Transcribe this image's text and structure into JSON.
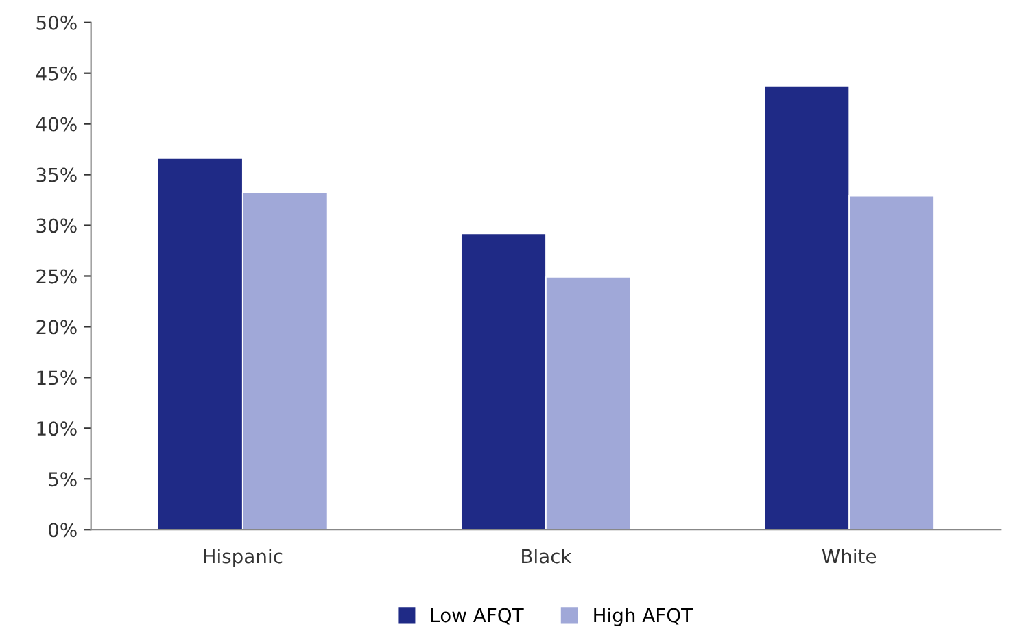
{
  "chart_data": {
    "type": "bar",
    "categories": [
      "Hispanic",
      "Black",
      "White"
    ],
    "series": [
      {
        "name": "Low AFQT",
        "color": "#1f2a86",
        "values": [
          36.6,
          29.2,
          43.7
        ]
      },
      {
        "name": "High AFQT",
        "color": "#a0a8d8",
        "values": [
          33.2,
          24.9,
          32.9
        ]
      }
    ],
    "ylim": [
      0,
      50
    ],
    "yticks": [
      {
        "value": 0,
        "label": "0%"
      },
      {
        "value": 5,
        "label": "5%"
      },
      {
        "value": 10,
        "label": "10%"
      },
      {
        "value": 15,
        "label": "15%"
      },
      {
        "value": 20,
        "label": "20%"
      },
      {
        "value": 25,
        "label": "25%"
      },
      {
        "value": 30,
        "label": "30%"
      },
      {
        "value": 35,
        "label": "35%"
      },
      {
        "value": 40,
        "label": "40%"
      },
      {
        "value": 45,
        "label": "45%"
      },
      {
        "value": 50,
        "label": "50%"
      }
    ],
    "grid": false,
    "legend": "bottom"
  }
}
